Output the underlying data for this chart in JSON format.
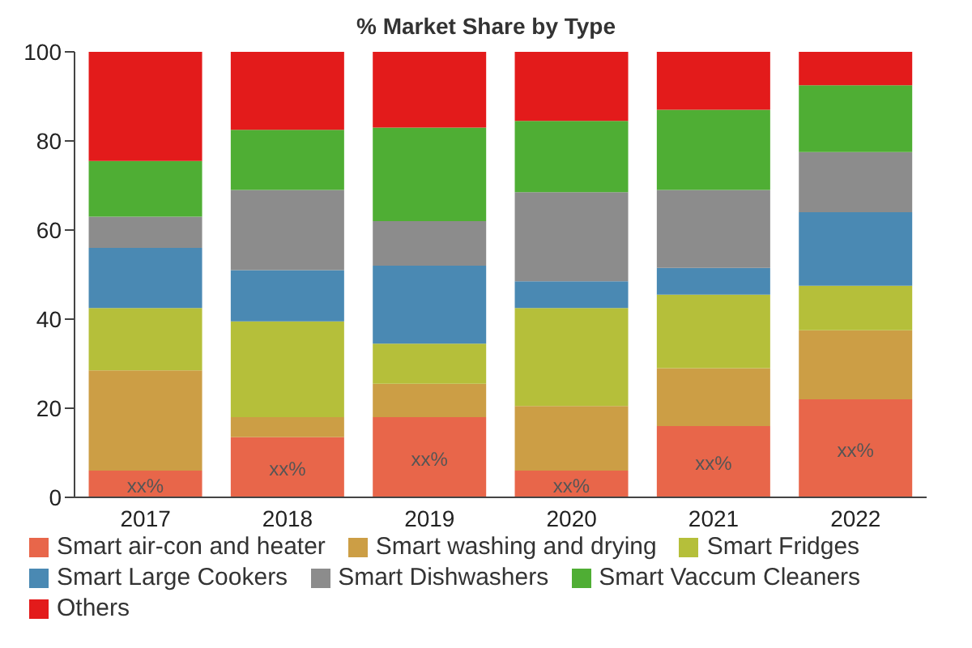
{
  "chart_data": {
    "type": "bar",
    "title": "% Market Share by Type",
    "stacked": true,
    "categories": [
      "2017",
      "2018",
      "2019",
      "2020",
      "2021",
      "2022"
    ],
    "ylim": [
      0,
      100
    ],
    "yticks": [
      0,
      20,
      40,
      60,
      80,
      100
    ],
    "grid": false,
    "legend": "bottom",
    "series": [
      {
        "name": "Smart air-con and heater",
        "color": "#e8664a",
        "values": [
          6,
          13.5,
          18,
          6,
          16,
          22
        ],
        "value_labels": [
          "xx%",
          "xx%",
          "xx%",
          "xx%",
          "xx%",
          "xx%"
        ]
      },
      {
        "name": "Smart washing and drying",
        "color": "#cc9e45",
        "values": [
          22.5,
          4.5,
          7.5,
          14.5,
          13,
          15.5
        ]
      },
      {
        "name": "Smart Fridges",
        "color": "#b5bf3a",
        "values": [
          14,
          21.5,
          9,
          22,
          16.5,
          10
        ]
      },
      {
        "name": "Smart Large Cookers",
        "color": "#4a89b3",
        "values": [
          13.5,
          11.5,
          17.5,
          6,
          6,
          16.5
        ]
      },
      {
        "name": "Smart Dishwashers",
        "color": "#8c8c8c",
        "values": [
          7,
          18,
          10,
          20,
          17.5,
          13.5
        ]
      },
      {
        "name": "Smart Vaccum Cleaners",
        "color": "#4fae34",
        "values": [
          12.5,
          13.5,
          21,
          16,
          18,
          15
        ]
      },
      {
        "name": "Others",
        "color": "#e31b1b",
        "values": [
          24.5,
          17.5,
          17,
          15.5,
          13,
          7.5
        ]
      }
    ]
  }
}
